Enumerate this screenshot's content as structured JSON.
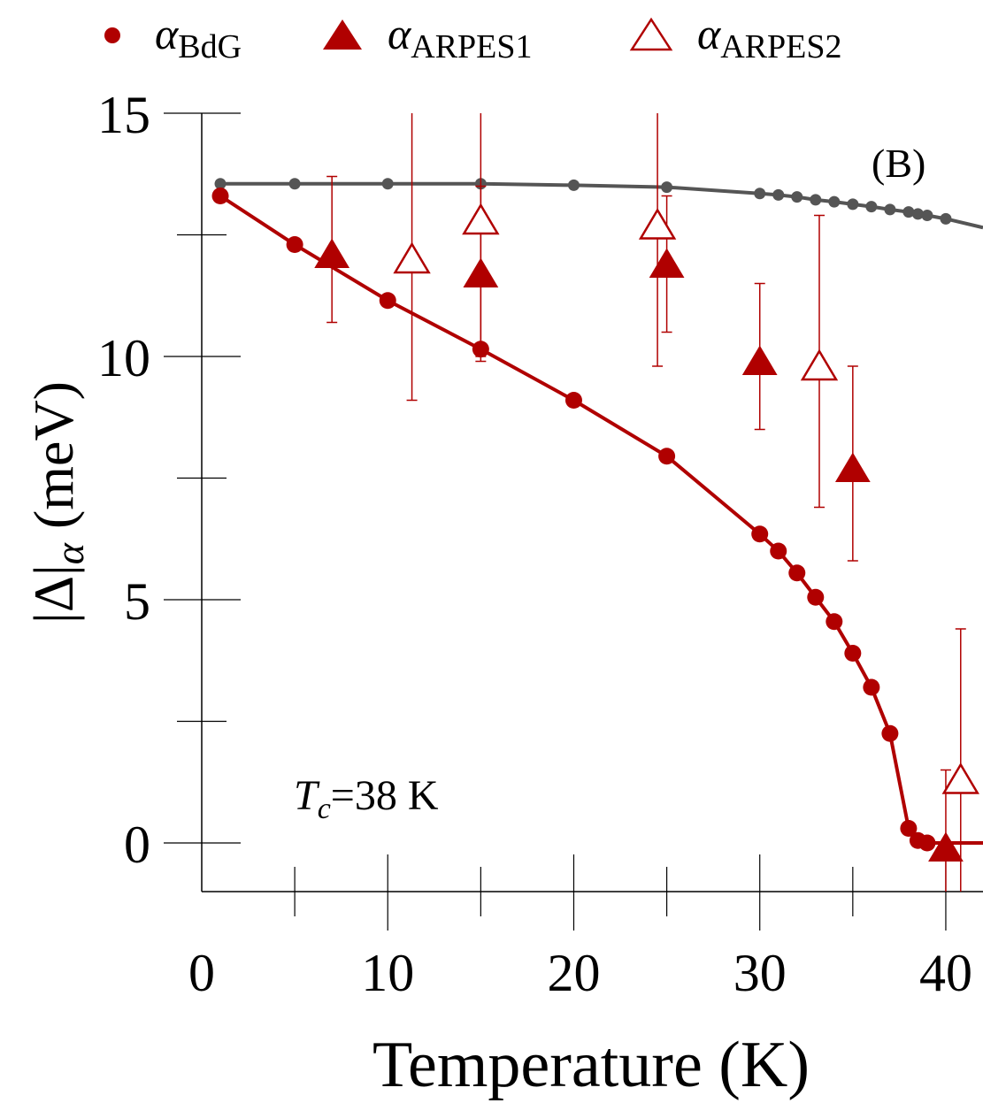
{
  "chart_data": {
    "type": "scatter",
    "panel_label": "(B)",
    "annotation": {
      "prefix": "T",
      "subscript": "c",
      "suffix": "=38 K"
    },
    "xlabel": "Temperature (K)",
    "ylabel": {
      "main": "|Δ|",
      "subscript": "α",
      "unit": " (meV)"
    },
    "xlim": [
      0,
      42
    ],
    "ylim": [
      -1,
      15
    ],
    "xticks": [
      {
        "value": 0,
        "label": "0"
      },
      {
        "value": 10,
        "label": "10"
      },
      {
        "value": 20,
        "label": "20"
      },
      {
        "value": 30,
        "label": "30"
      },
      {
        "value": 40,
        "label": "40"
      }
    ],
    "xminor": [
      5,
      15,
      25,
      35
    ],
    "yticks": [
      {
        "value": 0,
        "label": "0"
      },
      {
        "value": 5,
        "label": "5"
      },
      {
        "value": 10,
        "label": "10"
      },
      {
        "value": 15,
        "label": "15"
      }
    ],
    "yminor": [
      2.5,
      7.5,
      12.5
    ],
    "legend": [
      {
        "symbol": "circle",
        "greek": "α",
        "sub": "BdG"
      },
      {
        "symbol": "triangle-filled",
        "greek": "α",
        "sub": "ARPES1"
      },
      {
        "symbol": "triangle-open",
        "greek": "α",
        "sub": "ARPES2"
      }
    ],
    "colors": {
      "red": "#b00000",
      "gray": "#555555"
    },
    "series": [
      {
        "name": "BdG gray",
        "marker": "small-circle",
        "color": "#555555",
        "line_start": [
          1,
          13.55
        ],
        "line_end": [
          42,
          12.65
        ],
        "x": [
          1,
          5,
          10,
          15,
          20,
          25,
          30,
          31,
          32,
          33,
          34,
          35,
          36,
          37,
          38,
          38.5,
          39,
          40
        ],
        "y": [
          13.55,
          13.55,
          13.55,
          13.55,
          13.52,
          13.48,
          13.35,
          13.32,
          13.28,
          13.22,
          13.18,
          13.13,
          13.08,
          13.02,
          12.97,
          12.93,
          12.9,
          12.83
        ]
      },
      {
        "name": "α BdG",
        "marker": "circle",
        "color": "#b00000",
        "x": [
          1,
          5,
          10,
          15,
          20,
          25,
          30,
          31,
          32,
          33,
          34,
          35,
          36,
          37,
          38,
          38.5,
          39
        ],
        "y": [
          13.3,
          12.3,
          11.15,
          10.15,
          9.1,
          7.95,
          6.35,
          6.0,
          5.55,
          5.05,
          4.55,
          3.9,
          3.2,
          2.25,
          0.3,
          0.05,
          0.0
        ],
        "tail": [
          [
            39,
            0.0
          ],
          [
            42,
            0.0
          ]
        ]
      },
      {
        "name": "α ARPES1",
        "marker": "triangle-filled",
        "color": "#b00000",
        "x": [
          7,
          15,
          25,
          30,
          35,
          40
        ],
        "y": [
          12.1,
          11.7,
          11.9,
          9.9,
          7.7,
          -0.1
        ],
        "err_low": [
          10.7,
          9.9,
          10.5,
          8.5,
          5.8,
          -1.0
        ],
        "err_high": [
          13.7,
          13.5,
          13.3,
          11.5,
          9.8,
          1.5
        ]
      },
      {
        "name": "α ARPES2",
        "marker": "triangle-open",
        "color": "#b00000",
        "x": [
          11.3,
          15,
          24.5,
          33.2,
          40.8
        ],
        "y": [
          12.0,
          12.8,
          12.7,
          9.8,
          1.3
        ],
        "err_low": [
          9.1,
          10.0,
          9.8,
          6.9,
          -1.0
        ],
        "err_high": [
          15.0,
          15.0,
          15.0,
          12.9,
          4.4
        ]
      }
    ]
  }
}
